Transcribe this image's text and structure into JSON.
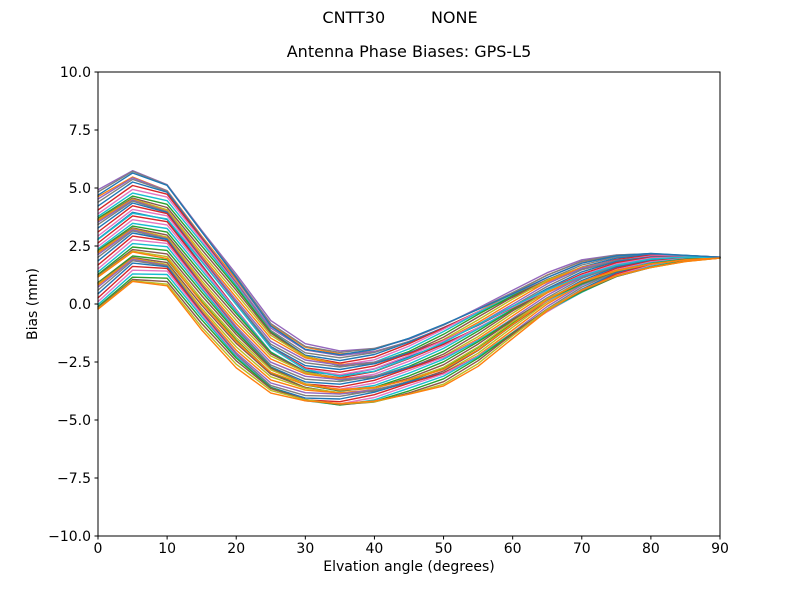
{
  "figure": {
    "suptitle": "CNTT30         NONE",
    "background": "#ffffff"
  },
  "chart_data": {
    "type": "line",
    "title": "Antenna Phase Biases: GPS-L5",
    "xlabel": "Elvation angle (degrees)",
    "ylabel": "Bias (mm)",
    "xlim": [
      0,
      90
    ],
    "ylim": [
      -10.0,
      10.0
    ],
    "grid": false,
    "legend": "none",
    "x_tick_values": [
      0,
      10,
      20,
      30,
      40,
      50,
      60,
      70,
      80,
      90
    ],
    "x_tick_labels": [
      "0",
      "10",
      "20",
      "30",
      "40",
      "50",
      "60",
      "70",
      "80",
      "90"
    ],
    "y_tick_values": [
      10.0,
      7.5,
      5.0,
      2.5,
      0.0,
      -2.5,
      -5.0,
      -7.5,
      -10.0
    ],
    "y_tick_labels": [
      "10.0",
      "7.5",
      "5.0",
      "2.5",
      "0.0",
      "−2.5",
      "−5.0",
      "−7.5",
      "−10.0"
    ],
    "x": [
      0,
      5,
      10,
      15,
      20,
      25,
      30,
      35,
      40,
      45,
      50,
      55,
      60,
      65,
      70,
      75,
      80,
      85,
      90
    ],
    "envelope_top": [
      4.8,
      5.7,
      5.2,
      3.3,
      1.4,
      -0.7,
      -1.8,
      -2.15,
      -2.0,
      -1.5,
      -0.8,
      -0.05,
      0.65,
      1.3,
      1.8,
      2.05,
      2.15,
      2.1,
      2.02
    ],
    "envelope_bottom": [
      -0.3,
      1.0,
      0.9,
      -1.0,
      -2.7,
      -3.9,
      -4.3,
      -4.4,
      -4.2,
      -3.8,
      -3.4,
      -2.6,
      -1.5,
      -0.4,
      0.5,
      1.2,
      1.6,
      1.85,
      1.98
    ],
    "convergence_value": 2.0,
    "n_series": 52,
    "wiggle_amplitude": 0.13,
    "line_width": 1.4,
    "axis_color": "#000000",
    "colors": [
      "#1f77b4",
      "#ff7f0e",
      "#2ca02c",
      "#d62728",
      "#9467bd",
      "#8c564b",
      "#e377c2",
      "#7f7f7f",
      "#bcbd22",
      "#17becf"
    ]
  }
}
